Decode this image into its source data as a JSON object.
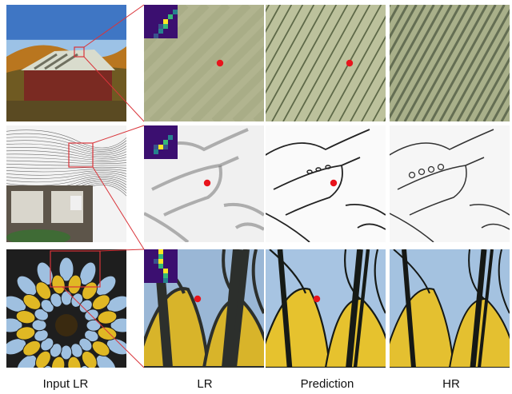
{
  "figure": {
    "column_labels": [
      "Input LR",
      "LR",
      "Prediction",
      "HR"
    ],
    "rows": [
      {
        "scene": "barn",
        "input": {
          "sky": "#3f76c4",
          "sky_low": "#9cc2e6",
          "hills": "#b9761f",
          "trees": "#6f5a22",
          "barn": "#7a2a22",
          "roof": "#d9dccd",
          "ground": "#5a4a22"
        },
        "lr": {
          "bg": "#b1b48f"
        },
        "prediction": {
          "bg": "#bcc19c",
          "stripe": "#4e5a3a"
        },
        "hr": {
          "bg": "#a9b08a",
          "stripe": "#59634a"
        }
      },
      {
        "scene": "drawing",
        "input": {
          "paper": "#f3f3f3",
          "ink": "#333333",
          "door": "#5d554a",
          "plants": "#3f6b35"
        },
        "lr": {
          "bg": "#f0f0f0",
          "ink": "#777777"
        },
        "prediction": {
          "bg": "#fafafa",
          "ink": "#222222"
        },
        "hr": {
          "bg": "#f6f6f6",
          "ink": "#333333"
        }
      },
      {
        "scene": "stained-glass",
        "input": {
          "glass_blue": "#9fc0e0",
          "glass_yellow": "#e0b824",
          "lead": "#1e1e1e",
          "center": "#3a2a10"
        },
        "lr": {
          "blue": "#9ab7d6",
          "yellow": "#d8b42a",
          "lead": "#2c2f2c"
        },
        "prediction": {
          "blue": "#a7c4e2",
          "yellow": "#e6c22e",
          "lead": "#161a16"
        },
        "hr": {
          "blue": "#a4c2e0",
          "yellow": "#e4c030",
          "lead": "#151815"
        }
      }
    ],
    "marker_color": "#e8141c",
    "zoom_box_color": "#d9343a",
    "kernel_colors": [
      "#3b0f70",
      "#3a548c",
      "#26828e",
      "#35b779",
      "#fde725"
    ]
  }
}
